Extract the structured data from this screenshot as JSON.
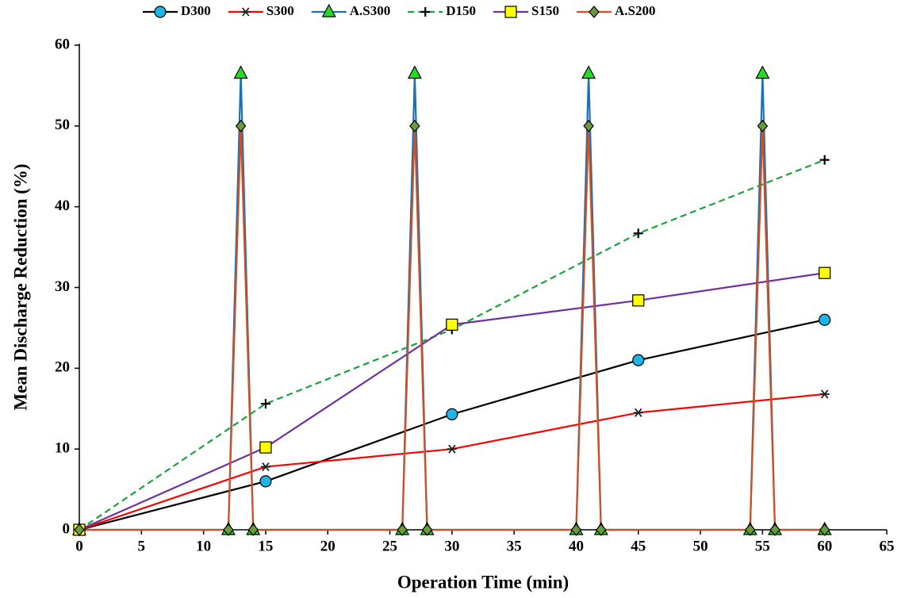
{
  "chart_data": {
    "type": "line",
    "xlabel": "Operation Time (min)",
    "ylabel": "Mean Discharge Reduction (%)",
    "xlim": [
      0,
      65
    ],
    "xticks": [
      0,
      5,
      10,
      15,
      20,
      25,
      30,
      35,
      40,
      45,
      50,
      55,
      60,
      65
    ],
    "ylim": [
      0,
      60
    ],
    "yticks": [
      0,
      10,
      20,
      30,
      40,
      50,
      60
    ],
    "grid": false,
    "legend": "top",
    "series": [
      {
        "name": "D300",
        "color": "#000000",
        "marker": "circle",
        "marker_color": "#1fb4e8",
        "dashed": false,
        "x": [
          0,
          15,
          30,
          45,
          60
        ],
        "values": [
          0,
          6,
          14.3,
          21,
          26
        ]
      },
      {
        "name": "S300",
        "color": "#ff0000",
        "marker": "asterisk",
        "marker_color": "#222222",
        "dashed": false,
        "x": [
          0,
          15,
          30,
          45,
          60
        ],
        "values": [
          0,
          7.8,
          10,
          14.5,
          16.8
        ]
      },
      {
        "name": "A.S300",
        "color": "#1f6fb4",
        "marker": "triangle",
        "marker_color": "#22dd22",
        "dashed": false,
        "x": [
          0,
          12,
          13,
          14,
          26,
          27,
          28,
          40,
          41,
          42,
          54,
          55,
          56,
          60
        ],
        "values": [
          0,
          0,
          56.5,
          0,
          0,
          56.5,
          0,
          0,
          56.5,
          0,
          0,
          56.5,
          0,
          0
        ]
      },
      {
        "name": "D150",
        "color": "#1aa33a",
        "marker": "plus",
        "marker_color": "#000000",
        "dashed": true,
        "x": [
          0,
          15,
          30,
          45,
          60
        ],
        "values": [
          0,
          15.6,
          24.8,
          36.7,
          45.8
        ]
      },
      {
        "name": "S150",
        "color": "#7030a0",
        "marker": "square",
        "marker_color": "#ffff00",
        "dashed": false,
        "x": [
          0,
          15,
          30,
          45,
          60
        ],
        "values": [
          0,
          10.2,
          25.4,
          28.4,
          31.8
        ]
      },
      {
        "name": "A.S200",
        "color": "#d2501e",
        "marker": "diamond",
        "marker_color": "#6a9a3a",
        "dashed": false,
        "x": [
          0,
          12,
          13,
          14,
          26,
          27,
          28,
          40,
          41,
          42,
          54,
          55,
          56,
          60
        ],
        "values": [
          0,
          0,
          50,
          0,
          0,
          50,
          0,
          0,
          50,
          0,
          0,
          50,
          0,
          0
        ]
      }
    ]
  }
}
